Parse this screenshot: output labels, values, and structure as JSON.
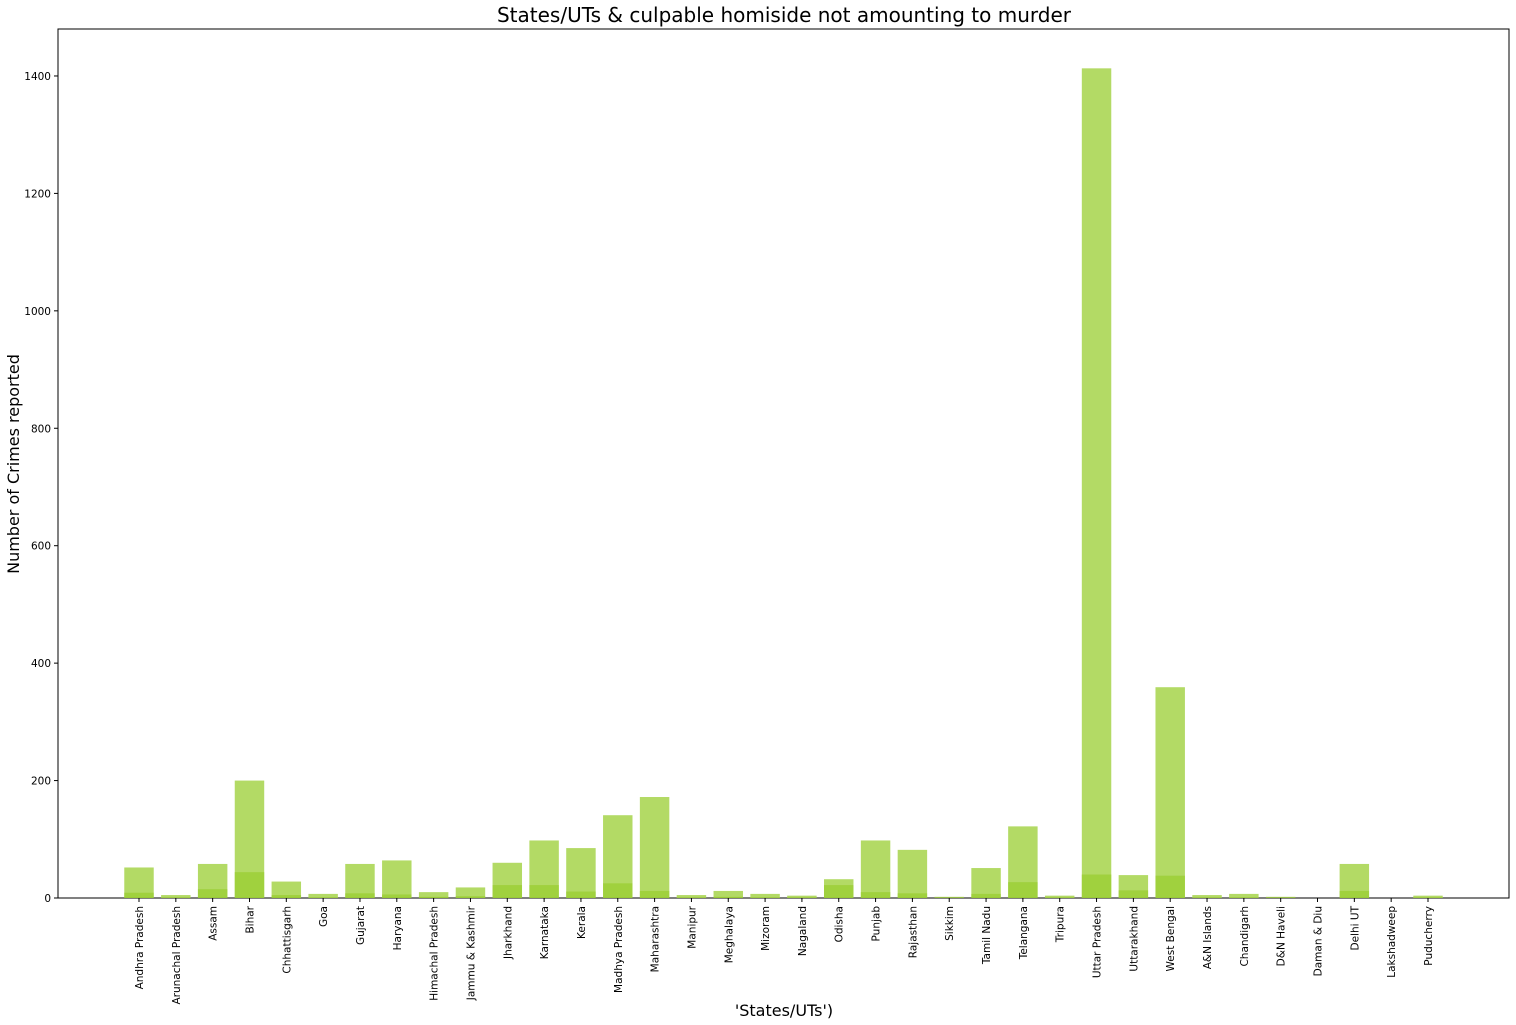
{
  "chart_data": {
    "type": "bar",
    "title": "States/UTs & culpable homiside not amounting to murder",
    "xlabel": "'States/UTs')",
    "ylabel": "Number of Crimes reported",
    "ylim": [
      0,
      1480
    ],
    "yticks": [
      0,
      200,
      400,
      600,
      800,
      1000,
      1200,
      1400
    ],
    "grid": false,
    "categories": [
      "Andhra Pradesh",
      "Arunachal Pradesh",
      "Assam",
      "Bihar",
      "Chhattisgarh",
      "Goa",
      "Gujarat",
      "Haryana",
      "Himachal Pradesh",
      "Jammu & Kashmir",
      "Jharkhand",
      "Karnataka",
      "Kerala",
      "Madhya Pradesh",
      "Maharashtra",
      "Manipur",
      "Meghalaya",
      "Mizoram",
      "Nagaland",
      "Odisha",
      "Punjab",
      "Rajasthan",
      "Sikkim",
      "Tamil Nadu",
      "Telangana",
      "Tripura",
      "Uttar Pradesh",
      "Uttarakhand",
      "West Bengal",
      "A&N Islands",
      "Chandigarh",
      "D&N Haveli",
      "Daman & Diu",
      "Delhi UT",
      "Lakshadweep",
      "Puducherry"
    ],
    "series": [
      {
        "color": "#9acd32",
        "opacity": 0.75,
        "values": [
          52,
          5,
          58,
          200,
          28,
          7,
          58,
          64,
          10,
          18,
          60,
          98,
          85,
          141,
          172,
          5,
          12,
          7,
          4,
          32,
          98,
          82,
          2,
          51,
          122,
          4,
          1413,
          39,
          359,
          5,
          7,
          2,
          0,
          58,
          0,
          4
        ]
      },
      {
        "color": "#9acd32",
        "opacity": 0.75,
        "values": [
          9,
          1,
          15,
          44,
          5,
          1,
          8,
          6,
          2,
          3,
          22,
          22,
          11,
          25,
          12,
          1,
          2,
          1,
          1,
          22,
          10,
          8,
          0,
          7,
          27,
          1,
          40,
          13,
          38,
          1,
          1,
          0,
          0,
          12,
          0,
          1
        ]
      }
    ]
  }
}
